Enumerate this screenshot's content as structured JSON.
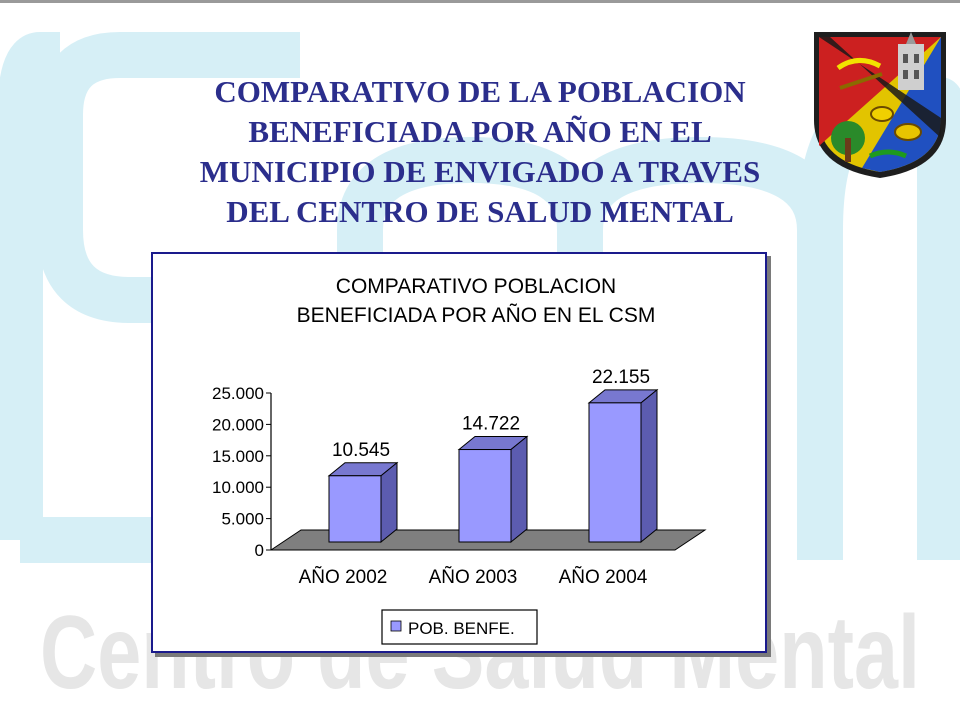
{
  "slide": {
    "title_lines": [
      "COMPARATIVO DE LA POBLACION",
      "BENEFICIADA POR AÑO EN EL",
      "MUNICIPIO DE ENVIGADO A TRAVES",
      "DEL CENTRO DE SALUD MENTAL"
    ],
    "watermark_text": "Centro de Salud Mental",
    "watermark_logo": "CSM"
  },
  "colors": {
    "title": "#2b2e8c",
    "bar_front": "#9999ff",
    "bar_side": "#5c5cb0",
    "bar_top": "#7878d0",
    "floor": "#7f7f7f",
    "watermark": "#aee0ee",
    "chart_border": "#1a1a8c"
  },
  "chart_data": {
    "type": "bar",
    "title_lines": [
      "COMPARATIVO POBLACION",
      "BENEFICIADA POR AÑO EN EL CSM"
    ],
    "categories": [
      "AÑO 2002",
      "AÑO 2003",
      "AÑO 2004"
    ],
    "series": [
      {
        "name": "POB. BENFE.",
        "values": [
          10545,
          14722,
          22155
        ]
      }
    ],
    "data_labels": [
      "10.545",
      "14.722",
      "22.155"
    ],
    "y_ticks": [
      0,
      5000,
      10000,
      15000,
      20000,
      25000
    ],
    "y_tick_labels": [
      "0",
      "5.000",
      "10.000",
      "15.000",
      "20.000",
      "25.000"
    ],
    "ylim": [
      0,
      25000
    ],
    "grid": false,
    "legend": "bottom",
    "three_d": true
  }
}
